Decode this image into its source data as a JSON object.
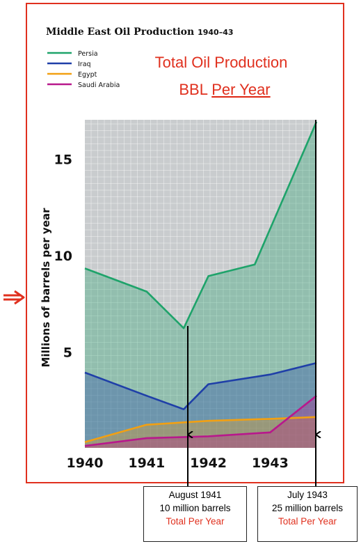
{
  "title": "Middle East Oil Production",
  "title_years": "1940–43",
  "annotation": {
    "line1": "Total Oil Production",
    "line2_prefix": "BBL ",
    "line2_underlined": "Per Year"
  },
  "colors": {
    "frame": "#e0301e",
    "annotation": "#e0301e",
    "persia": "#1ea36a",
    "iraq": "#1f3fa8",
    "egypt": "#f2a012",
    "saudi": "#b8188c",
    "plot_bg": "#c9ccce"
  },
  "callouts": [
    {
      "line1": "August 1941",
      "line2": "10 million barrels",
      "line3": "Total Per Year"
    },
    {
      "line1": "July 1943",
      "line2": "25 million barrels",
      "line3": "Total Per Year"
    }
  ],
  "chart_data": {
    "type": "area",
    "title": "Middle East Oil Production 1940–43",
    "ylabel": "Millions of barrels per year",
    "xlabel": "",
    "x_ticks": [
      "1940",
      "1941",
      "1942",
      "1943"
    ],
    "y_ticks": [
      5,
      10,
      15
    ],
    "xlim": [
      1940,
      1943.75
    ],
    "ylim": [
      0,
      17
    ],
    "grid": true,
    "legend": "top-left",
    "series": [
      {
        "name": "Persia",
        "x": [
          1940,
          1941,
          1941.6,
          1942,
          1942.75,
          1943.75
        ],
        "y": [
          9.3,
          8.1,
          6.2,
          8.9,
          9.5,
          16.9
        ]
      },
      {
        "name": "Iraq",
        "x": [
          1940,
          1941,
          1941.6,
          1942,
          1943,
          1943.75
        ],
        "y": [
          3.9,
          2.7,
          2.0,
          3.3,
          3.8,
          4.4
        ]
      },
      {
        "name": "Egypt",
        "x": [
          1940,
          1941,
          1942,
          1943,
          1943.75
        ],
        "y": [
          0.3,
          1.2,
          1.4,
          1.5,
          1.6
        ]
      },
      {
        "name": "Saudi Arabia",
        "x": [
          1940,
          1941,
          1942,
          1943,
          1943.75
        ],
        "y": [
          0.1,
          0.5,
          0.6,
          0.8,
          2.7
        ]
      }
    ]
  }
}
